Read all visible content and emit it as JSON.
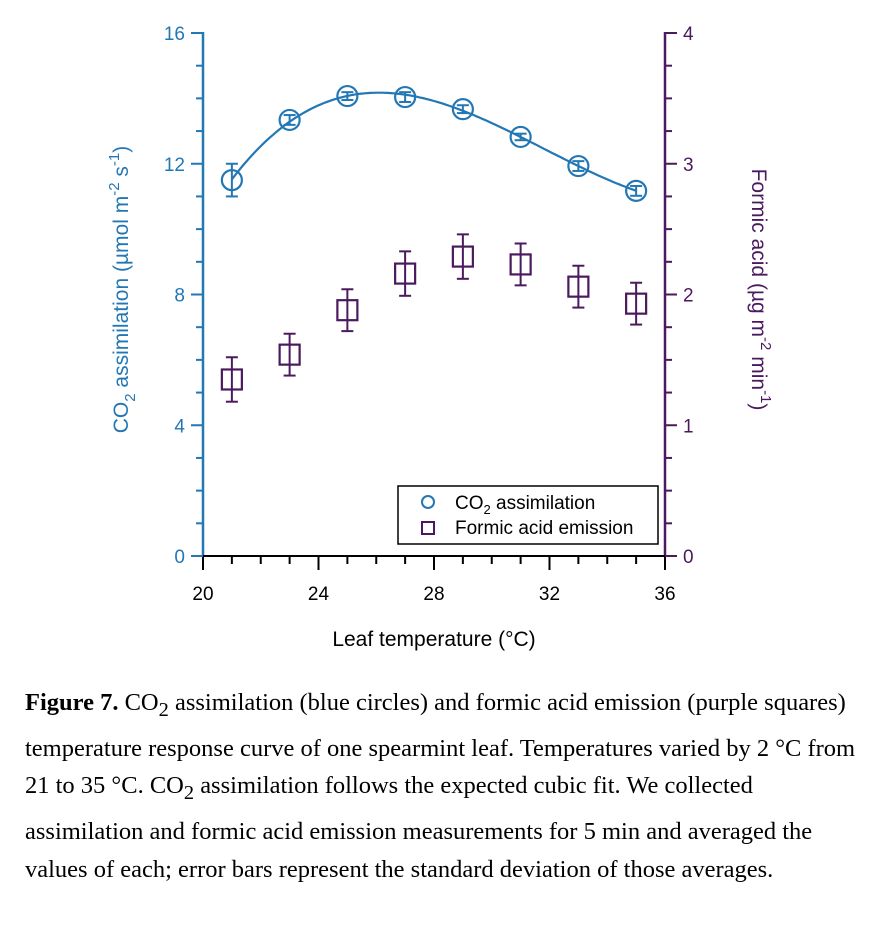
{
  "chart_data": {
    "type": "scatter",
    "x_label": "Leaf temperature (°C)",
    "y_left_label": {
      "pre": "CO",
      "sub": "2",
      "mid": " assimilation (µmol m",
      "sup1": "-2",
      "mid2": " s",
      "sup2": "-1",
      "post": ")"
    },
    "y_right_label": {
      "pre": "Formic acid (µg m",
      "sup1": "-2",
      "mid": " min",
      "sup2": "-1",
      "post": ")"
    },
    "xlim": [
      20,
      36
    ],
    "ylim_left": [
      0,
      16
    ],
    "ylim_right": [
      0,
      4
    ],
    "x_ticks": [
      "20",
      "24",
      "28",
      "32",
      "36"
    ],
    "y_left_ticks": [
      "0",
      "4",
      "8",
      "12",
      "16"
    ],
    "y_right_ticks": [
      "0",
      "1",
      "2",
      "3",
      "4"
    ],
    "x": [
      21,
      23,
      25,
      27,
      29,
      31,
      33,
      35
    ],
    "series": [
      {
        "name": "CO2 assimilation",
        "legend": {
          "pre": "CO",
          "sub": "2",
          "post": " assimilation"
        },
        "axis": "left",
        "marker": "circle",
        "color": "#2377b4",
        "values": [
          11.5,
          13.34,
          14.07,
          14.04,
          13.67,
          12.82,
          11.93,
          11.17
        ],
        "errors": [
          0.5,
          0.15,
          0.12,
          0.15,
          0.12,
          0.1,
          0.15,
          0.15
        ],
        "fit": "cubic"
      },
      {
        "name": "Formic acid emission",
        "legend": {
          "pre": "Formic acid emission",
          "sub": "",
          "post": ""
        },
        "axis": "right",
        "marker": "square",
        "color": "#4b1a5e",
        "values": [
          1.35,
          1.54,
          1.88,
          2.16,
          2.29,
          2.23,
          2.06,
          1.93
        ],
        "errors": [
          0.17,
          0.16,
          0.16,
          0.17,
          0.17,
          0.16,
          0.16,
          0.16
        ]
      }
    ],
    "legend_position": "bottom-right"
  },
  "caption": {
    "label": "Figure 7.",
    "text1": " CO",
    "sub1": "2",
    "text2": " assimilation (blue circles) and formic acid emission (purple squares) temperature response curve of one spearmint leaf. Temperatures varied by 2 °C from 21 to 35 °C. CO",
    "sub2": "2",
    "text3": " assimilation follows the expected cubic fit. We collected assimilation and formic acid emission measurements for 5 min and averaged the values of each; error bars represent the standard deviation of those averages."
  }
}
